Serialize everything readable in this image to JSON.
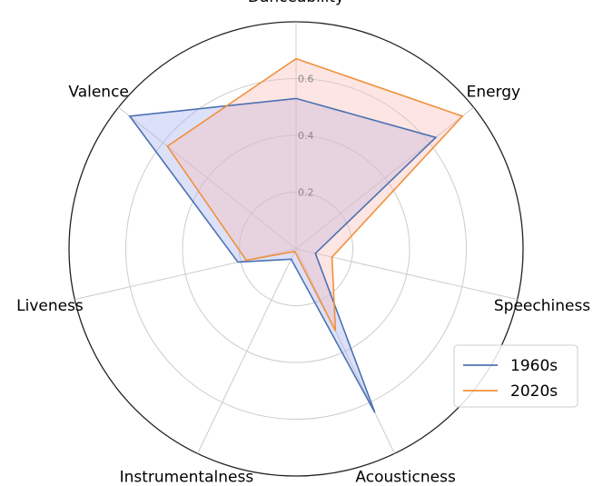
{
  "chart_data": {
    "type": "radar",
    "title": "",
    "axes": [
      "Danceability",
      "Energy",
      "Speechiness",
      "Acousticness",
      "Instrumentalness",
      "Liveness",
      "Valence"
    ],
    "r_ticks": [
      0.2,
      0.4,
      0.6
    ],
    "r_tick_labels": [
      "0.2",
      "0.4",
      "0.6"
    ],
    "r_max": 0.8,
    "grid": true,
    "legend": "lower-right",
    "series": [
      {
        "name": "1960s",
        "color": "#4c72b0",
        "fill": "#aab1f0",
        "values": [
          0.53,
          0.63,
          0.07,
          0.64,
          0.04,
          0.21,
          0.75
        ]
      },
      {
        "name": "2020s",
        "color": "#f0913a",
        "fill": "#f7bdb9",
        "values": [
          0.67,
          0.75,
          0.13,
          0.32,
          0.01,
          0.18,
          0.58
        ]
      }
    ]
  }
}
